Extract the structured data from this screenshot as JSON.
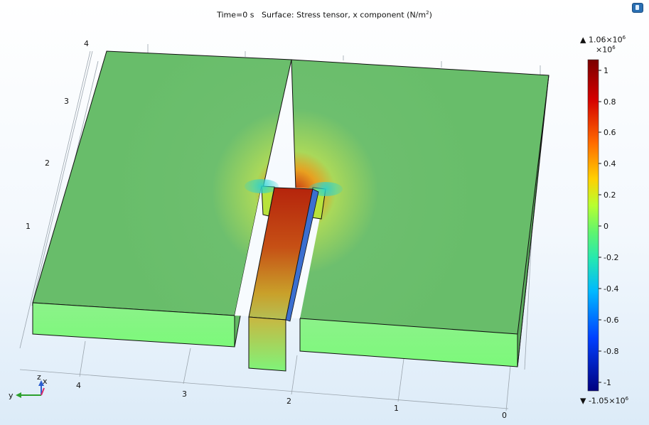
{
  "plot": {
    "time_label": "Time=0 s",
    "surface_label": "Surface: Stress tensor, x component (N/m",
    "surface_label_sup": "2",
    "surface_label_end": ")"
  },
  "colorbar": {
    "max_prefix": "▲ 1.06×10",
    "max_sup": "6",
    "exp_prefix": "×10",
    "exp_sup": "6",
    "min_prefix": "▼ -1.05×10",
    "min_sup": "6",
    "ticks": [
      "1",
      "0.8",
      "0.6",
      "0.4",
      "0.2",
      "0",
      "-0.2",
      "-0.4",
      "-0.6",
      "-0.8",
      "-1"
    ],
    "colors": [
      "#7a0000",
      "#d40000",
      "#ff6a00",
      "#ffd000",
      "#b7ff30",
      "#25e8b0",
      "#00b8ff",
      "#0040ff",
      "#000080"
    ]
  },
  "axes": {
    "z_ticks": [
      "4",
      "3",
      "2",
      "1"
    ],
    "x_ticks": [
      "4",
      "3",
      "2",
      "1",
      "0"
    ],
    "triad": {
      "z": "z",
      "x": "x",
      "y": "y"
    }
  },
  "colors": {
    "top_surface": "#6cbf6c",
    "side_surface": "#7cf97a",
    "stress_high": "#b02a10",
    "edge": "#111111"
  }
}
